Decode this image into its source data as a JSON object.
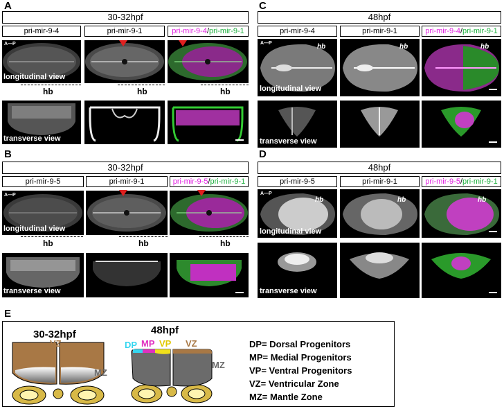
{
  "panels": {
    "A": {
      "letter": "A",
      "stage": "30-32hpf",
      "genes": [
        "pri-mir-9-4",
        "pri-mir-9-1"
      ],
      "merge": {
        "mag": "pri-mir-9-4",
        "sep": "/",
        "grn": "pri-mir-9-1"
      }
    },
    "B": {
      "letter": "B",
      "stage": "30-32hpf",
      "genes": [
        "pri-mir-9-5",
        "pri-mir-9-1"
      ],
      "merge": {
        "mag": "pri-mir-9-5",
        "sep": "/",
        "grn": "pri-mir-9-1"
      }
    },
    "C": {
      "letter": "C",
      "stage": "48hpf",
      "genes": [
        "pri-mir-9-4",
        "pri-mir-9-1"
      ],
      "merge": {
        "mag": "pri-mir-9-4",
        "sep": "/",
        "grn": "pri-mir-9-1"
      }
    },
    "D": {
      "letter": "D",
      "stage": "48hpf",
      "genes": [
        "pri-mir-9-5",
        "pri-mir-9-1"
      ],
      "merge": {
        "mag": "pri-mir-9-5",
        "sep": "/",
        "grn": "pri-mir-9-1"
      }
    }
  },
  "labels": {
    "longitudinal": "longitudinal view",
    "transverse": "transverse view",
    "ap": "A—P",
    "hb": "hb"
  },
  "panel_e": {
    "letter": "E",
    "left": {
      "stage": "30-32hpf",
      "vz": "VZ",
      "mz": "MZ"
    },
    "right": {
      "stage": "48hpf",
      "dp": "DP",
      "mp": "MP",
      "vp": "VP",
      "vz": "VZ",
      "mz": "MZ"
    },
    "legend": [
      "DP= Dorsal Progenitors",
      "MP= Medial Progenitors",
      "VP= Ventral Progenitors",
      "VZ= Ventricular Zone",
      "MZ= Mantle Zone"
    ]
  },
  "colors": {
    "magenta": "#e020e0",
    "green": "#20b040",
    "vz": "#a87845",
    "mz": "#6b6b6b",
    "yolk": "#d8b947",
    "dp": "#35d6f0",
    "mp": "#e030c0",
    "vp": "#f2e11a"
  }
}
